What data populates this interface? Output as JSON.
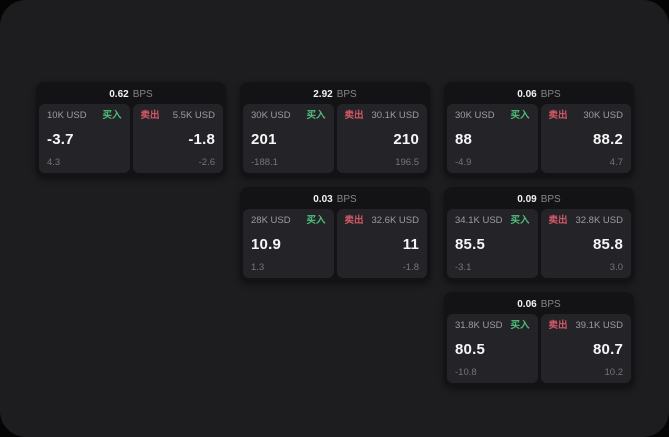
{
  "labels": {
    "bps": "BPS",
    "buy": "买入",
    "sell": "卖出"
  },
  "colors": {
    "outer_bg": "#050505",
    "panel_bg": "#1d1d1f",
    "card_bg": "#131315",
    "pane_bg": "#242428",
    "buy_accent": "#4fbf7b",
    "sell_accent": "#d25866"
  },
  "cards": [
    {
      "bps": "0.62",
      "buy": {
        "amount": "10K USD",
        "price": "-3.7",
        "delta": "4.3"
      },
      "sell": {
        "amount": "5.5K USD",
        "price": "-1.8",
        "delta": "-2.6"
      }
    },
    {
      "bps": "2.92",
      "buy": {
        "amount": "30K USD",
        "price": "201",
        "delta": "-188.1"
      },
      "sell": {
        "amount": "30.1K USD",
        "price": "210",
        "delta": "196.5"
      }
    },
    {
      "bps": "0.06",
      "buy": {
        "amount": "30K USD",
        "price": "88",
        "delta": "-4.9"
      },
      "sell": {
        "amount": "30K USD",
        "price": "88.2",
        "delta": "4.7"
      }
    },
    {
      "bps": "0.03",
      "buy": {
        "amount": "28K USD",
        "price": "10.9",
        "delta": "1.3"
      },
      "sell": {
        "amount": "32.6K USD",
        "price": "11",
        "delta": "-1.8"
      }
    },
    {
      "bps": "0.09",
      "buy": {
        "amount": "34.1K USD",
        "price": "85.5",
        "delta": "-3.1"
      },
      "sell": {
        "amount": "32.8K USD",
        "price": "85.8",
        "delta": "3.0"
      }
    },
    {
      "bps": "0.06",
      "buy": {
        "amount": "31.8K USD",
        "price": "80.5",
        "delta": "-10.8"
      },
      "sell": {
        "amount": "39.1K USD",
        "price": "80.7",
        "delta": "10.2"
      }
    }
  ]
}
